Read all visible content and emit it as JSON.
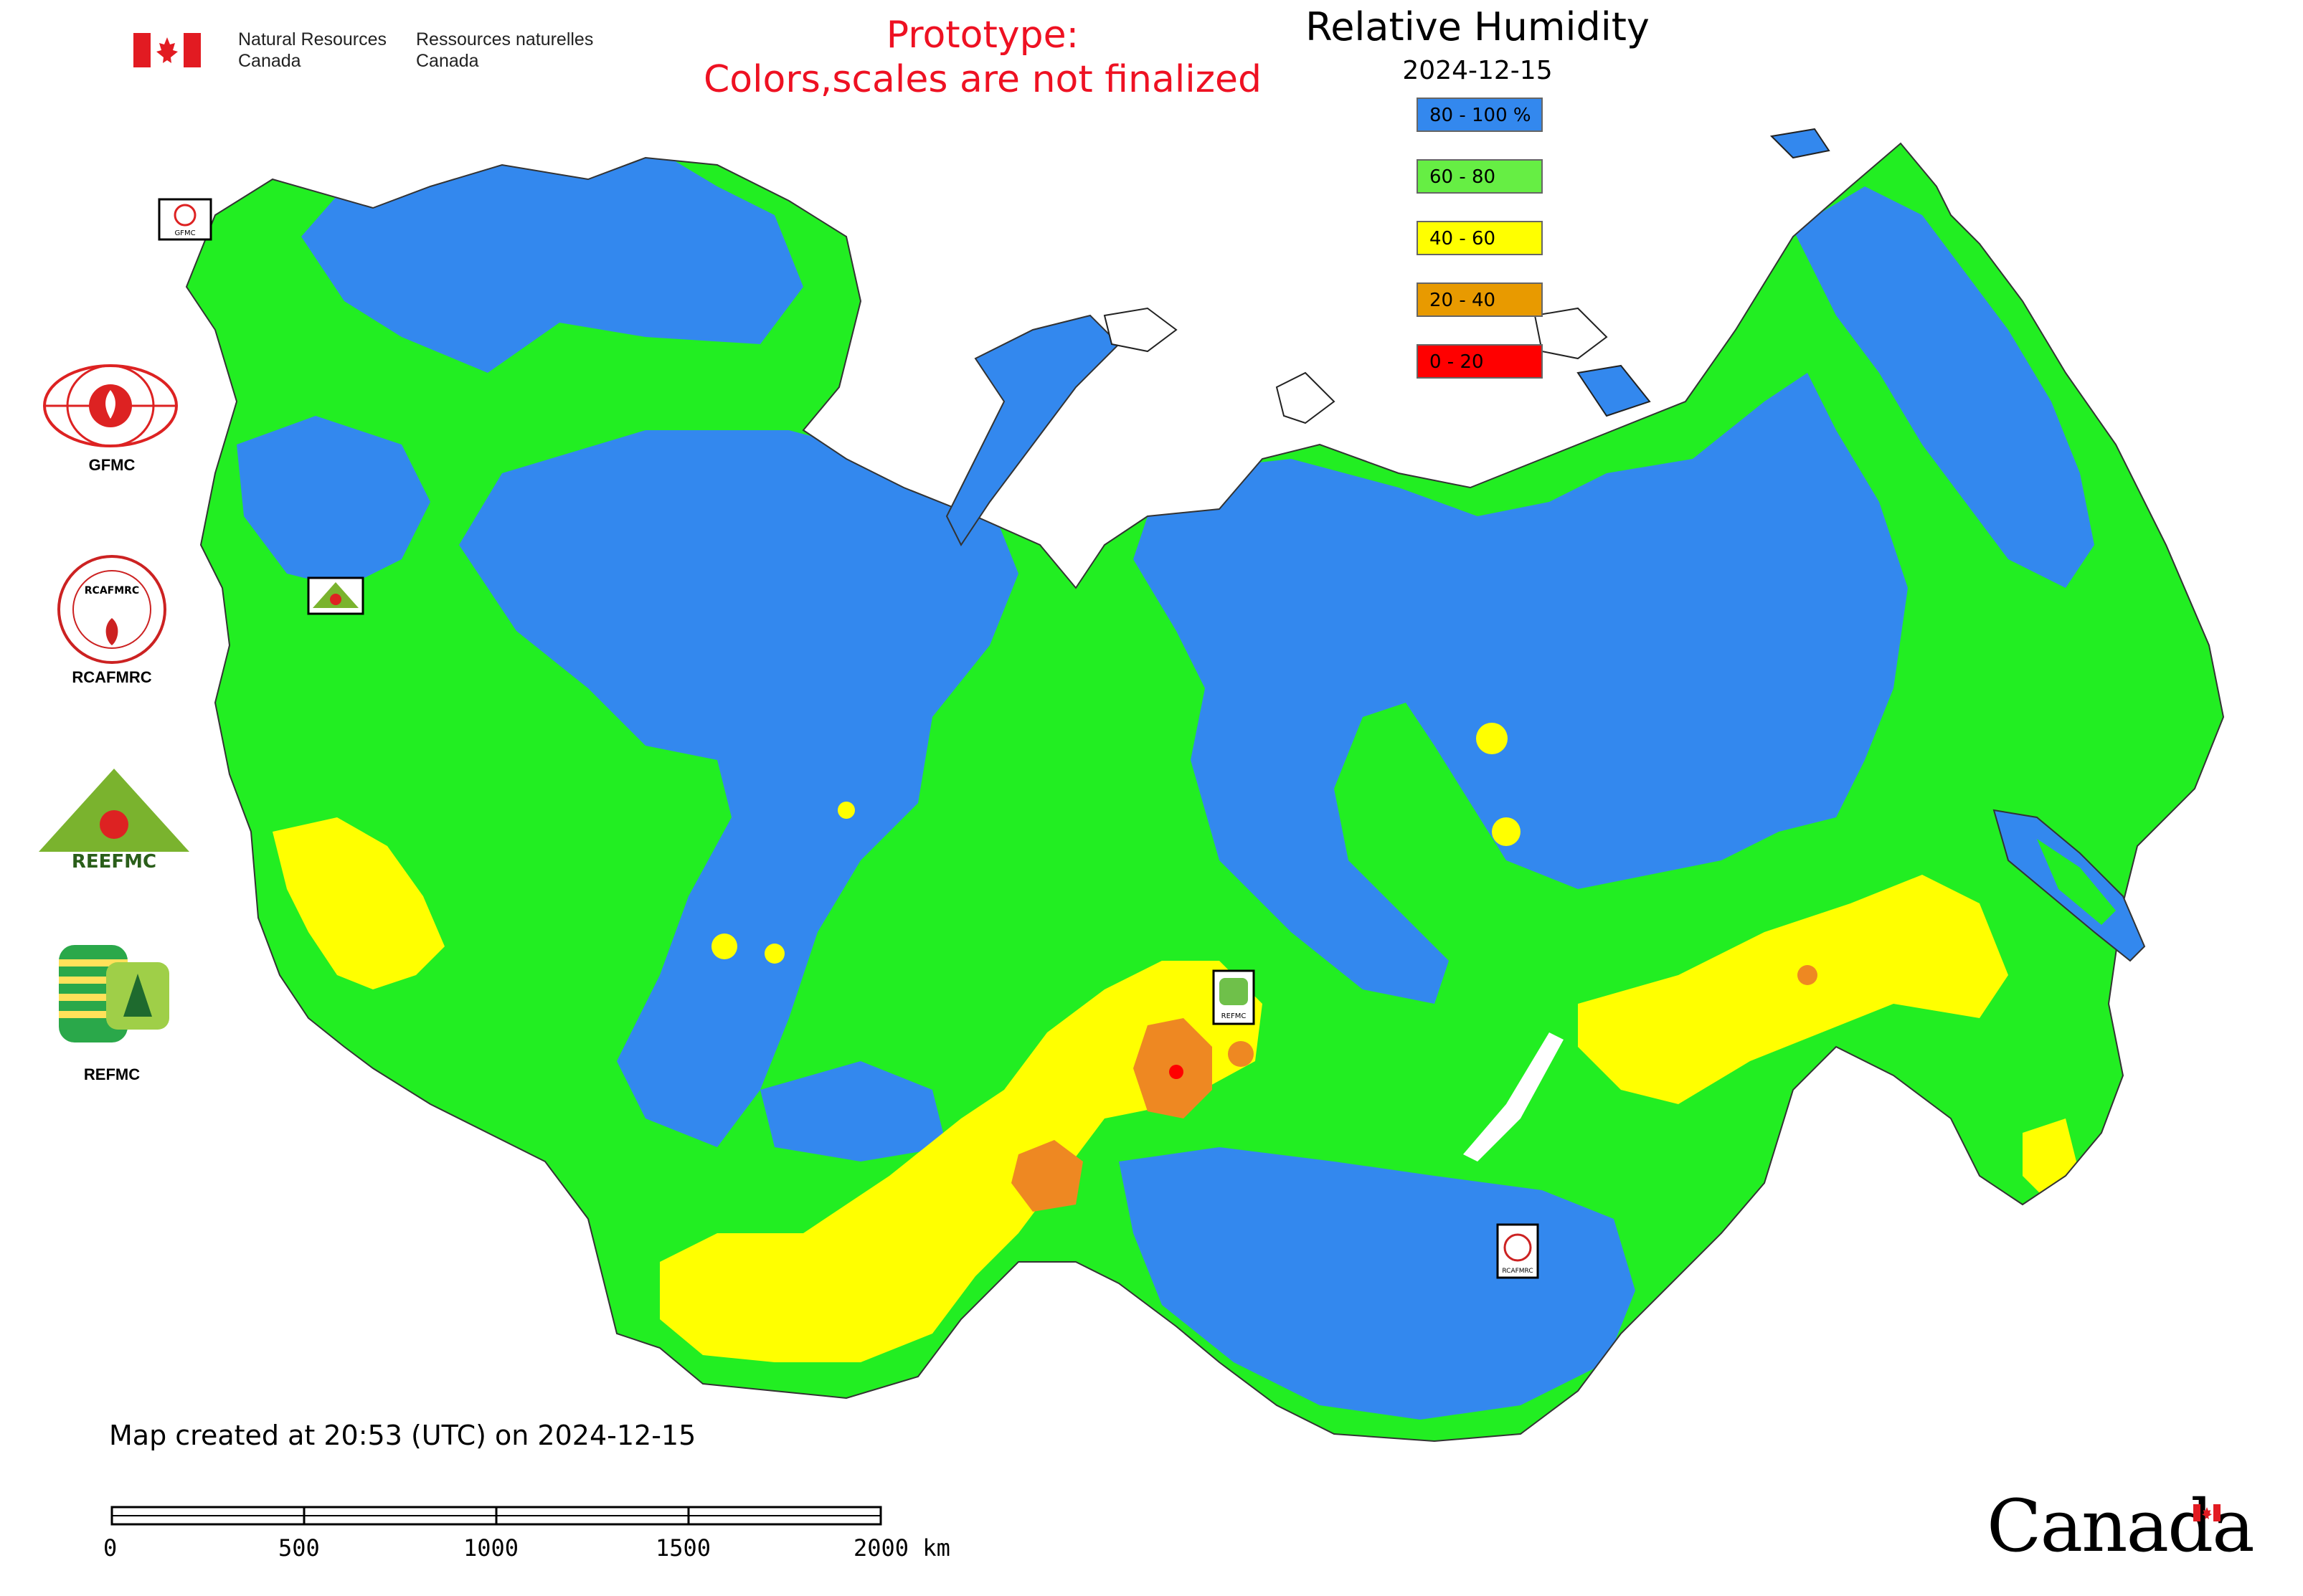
{
  "header": {
    "dept_en": "Natural Resources\nCanada",
    "dept_fr": "Ressources naturelles\nCanada",
    "prototype_line1": "Prototype:",
    "prototype_line2": "Colors,scales are not finalized"
  },
  "map": {
    "title": "Relative Humidity",
    "date": "2024-12-15",
    "legend": [
      {
        "label": "80 - 100 %",
        "color": "#3388ee"
      },
      {
        "label": "60 - 80",
        "color": "#66ee44"
      },
      {
        "label": "40 - 60",
        "color": "#ffff00"
      },
      {
        "label": "20 - 40",
        "color": "#e89a00"
      },
      {
        "label": "0 - 20",
        "color": "#ff0000"
      }
    ],
    "colors": {
      "very_humid": "#3388ee",
      "humid": "#22ee22",
      "moderate": "#ffff00",
      "dry": "#ee8822",
      "very_dry": "#ff0000"
    },
    "markers": [
      {
        "label": "GFMC",
        "icon": "gfmc-logo"
      },
      {
        "label": "REEFMC",
        "icon": "reefmc-logo"
      },
      {
        "label": "REFMC",
        "icon": "refmc-logo"
      },
      {
        "label": "RCAFMRC",
        "icon": "rcafmrc-logo"
      }
    ]
  },
  "side_logos": [
    {
      "label": "GFMC",
      "icon": "gfmc-logo"
    },
    {
      "label": "RCAFMRC",
      "icon": "rcafmrc-logo"
    },
    {
      "label": "REEFMC",
      "icon": "reefmc-logo"
    },
    {
      "label": "REFMC",
      "icon": "refmc-logo"
    }
  ],
  "footer": {
    "created": "Map created at 20:53 (UTC) on 2024-12-15",
    "scale_ticks": [
      "0",
      "500",
      "1000",
      "1500",
      "2000 km"
    ],
    "wordmark": "Canada"
  }
}
